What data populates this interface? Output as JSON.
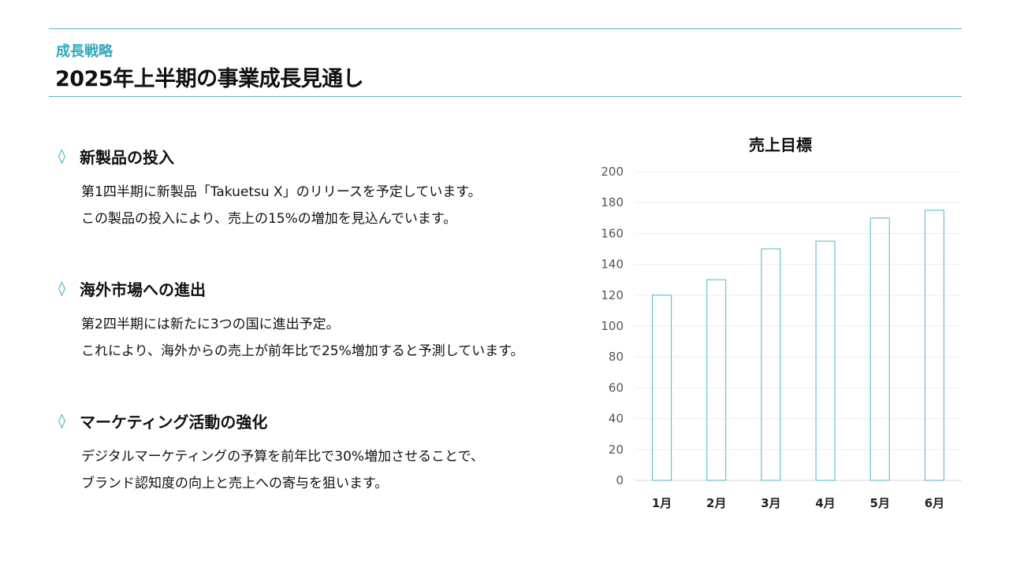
{
  "header": {
    "eyebrow": "成長戦略",
    "title": "2025年上半期の事業成長見通し"
  },
  "sections": [
    {
      "icon": "diamond-icon",
      "title": "新製品の投入",
      "lines": [
        "第1四半期に新製品「Takuetsu X」のリリースを予定しています。",
        "この製品の投入により、売上の15%の増加を見込んでいます。"
      ]
    },
    {
      "icon": "diamond-icon",
      "title": "海外市場への進出",
      "lines": [
        "第2四半期には新たに3つの国に進出予定。",
        "これにより、海外からの売上が前年比で25%増加すると予測しています。"
      ]
    },
    {
      "icon": "diamond-icon",
      "title": "マーケティング活動の強化",
      "lines": [
        "デジタルマーケティングの予算を前年比で30%増加させることで、",
        "ブランド認知度の向上と売上への寄与を狙います。"
      ]
    }
  ],
  "colors": {
    "accent": "#2fa9bd",
    "bar_stroke": "#4fb6c2",
    "grid": "#eeeeee",
    "text": "#111111"
  },
  "chart_data": {
    "type": "bar",
    "title": "売上目標",
    "categories": [
      "1月",
      "2月",
      "3月",
      "4月",
      "5月",
      "6月"
    ],
    "values": [
      120,
      130,
      150,
      155,
      170,
      175
    ],
    "yticks": [
      0,
      20,
      40,
      60,
      80,
      100,
      120,
      140,
      160,
      180,
      200
    ],
    "ylim": [
      0,
      200
    ],
    "xlabel": "",
    "ylabel": "",
    "grid": true,
    "bar_fill": "none"
  }
}
